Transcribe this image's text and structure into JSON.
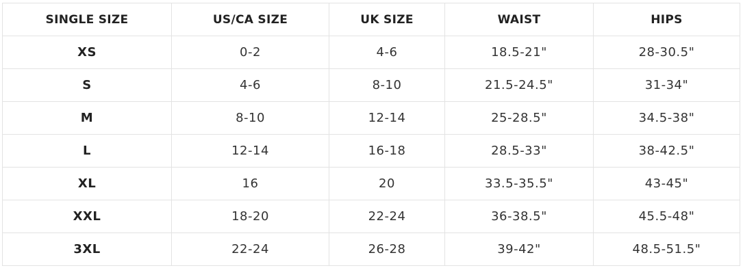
{
  "table": {
    "header": [
      "SINGLE SIZE",
      "US/CA SIZE",
      "UK SIZE",
      "WAIST",
      "HIPS"
    ],
    "rows": [
      [
        "XS",
        "0-2",
        "4-6",
        "18.5-21\"",
        "28-30.5\""
      ],
      [
        "S",
        "4-6",
        "8-10",
        "21.5-24.5\"",
        "31-34\""
      ],
      [
        "M",
        "8-10",
        "12-14",
        "25-28.5\"",
        "34.5-38\""
      ],
      [
        "L",
        "12-14",
        "16-18",
        "28.5-33\"",
        "38-42.5\""
      ],
      [
        "XL",
        "16",
        "20",
        "33.5-35.5\"",
        "43-45\""
      ],
      [
        "XXL",
        "18-20",
        "22-24",
        "36-38.5\"",
        "45.5-48\""
      ],
      [
        "3XL",
        "22-24",
        "26-28",
        "39-42\"",
        "48.5-51.5\""
      ]
    ]
  }
}
